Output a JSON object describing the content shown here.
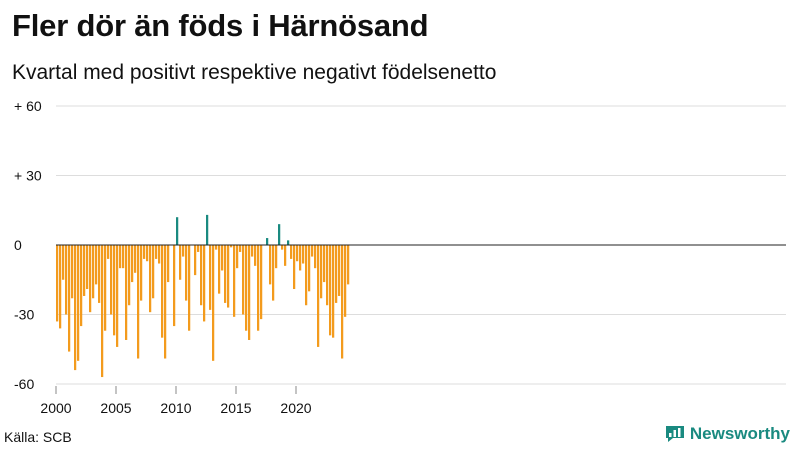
{
  "chart_data": {
    "type": "bar",
    "title": "Fler dör än föds i Härnösand",
    "subtitle": "Kvartal med positivt respektive negativt födelsenetto",
    "source": "Källa: SCB",
    "brand": "Newsworthy",
    "ylim": [
      -60,
      60
    ],
    "y_ticks": [
      {
        "value": 60,
        "label": "+ 60"
      },
      {
        "value": 30,
        "label": "+ 30"
      },
      {
        "value": 0,
        "label": "0"
      },
      {
        "value": -30,
        "label": "-30"
      },
      {
        "value": -60,
        "label": "-60"
      }
    ],
    "x_ticks": [
      "2000",
      "2005",
      "2010",
      "2015",
      "2020"
    ],
    "start_year": 2000,
    "colors": {
      "positive": "#1a8a80",
      "negative": "#f39b1d",
      "zero_line": "#222222",
      "grid": "#dddddd"
    },
    "values": [
      -33,
      -36,
      -15,
      -30,
      -46,
      -23,
      -54,
      -50,
      -35,
      -22,
      -19,
      -29,
      -23,
      -17,
      -25,
      -57,
      -37,
      -6,
      -30,
      -39,
      -44,
      -10,
      -10,
      -41,
      -26,
      -16,
      -12,
      -49,
      -24,
      -6,
      -7,
      -29,
      -23,
      -6,
      -8,
      -40,
      -49,
      -16,
      0,
      -35,
      12,
      -15,
      -5,
      -24,
      -37,
      0,
      -13,
      -3,
      -26,
      -33,
      13,
      -28,
      -50,
      -2,
      -21,
      -11,
      -25,
      -27,
      -1,
      -31,
      -10,
      -3,
      -30,
      -37,
      -41,
      -5,
      -9,
      -37,
      -32,
      0,
      3,
      -17,
      -24,
      -10,
      9,
      -2,
      -9,
      2,
      -6,
      -19,
      -7,
      -11,
      -8,
      -26,
      -20,
      -5,
      -10,
      -44,
      -23,
      -16,
      -26,
      -39,
      -40,
      -25,
      -22,
      -49,
      -31,
      -17
    ]
  }
}
